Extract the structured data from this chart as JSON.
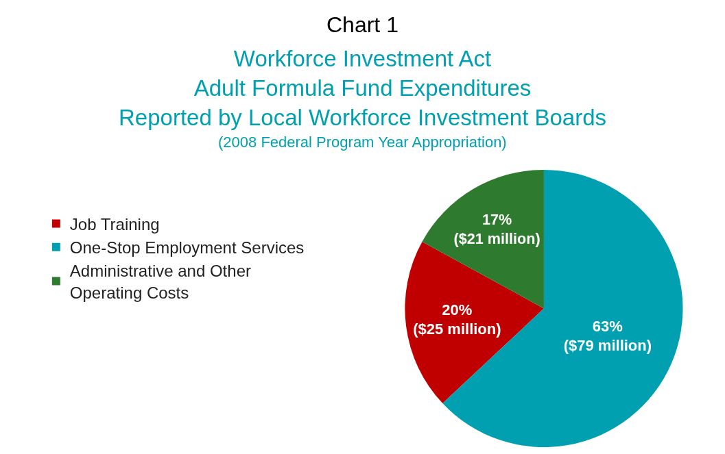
{
  "chart_data": {
    "type": "pie",
    "title": "Chart 1",
    "subtitle": "Workforce Investment Act\nAdult Formula Fund Expenditures\nReported by Local Workforce Investment Boards",
    "annotations": [
      "(2008 Federal Program Year Appropriation)"
    ],
    "categories": [
      "Job Training",
      "One-Stop Employment Services",
      "Administrative and Other\nOperating Costs"
    ],
    "values": [
      20,
      63,
      17
    ],
    "value_labels": [
      "20%\n($25 million)",
      "63%\n($79 million)",
      "17%\n($21 million)"
    ],
    "colors": [
      "#c00000",
      "#00a0b0",
      "#2e7a2e"
    ],
    "legend": "left"
  }
}
